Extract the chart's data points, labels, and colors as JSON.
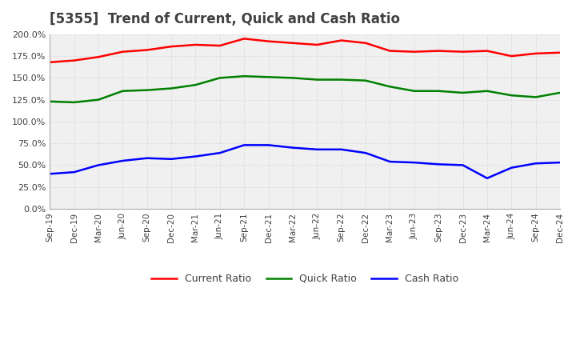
{
  "title": "[5355]  Trend of Current, Quick and Cash Ratio",
  "x_labels": [
    "Sep-19",
    "Dec-19",
    "Mar-20",
    "Jun-20",
    "Sep-20",
    "Dec-20",
    "Mar-21",
    "Jun-21",
    "Sep-21",
    "Dec-21",
    "Mar-22",
    "Jun-22",
    "Sep-22",
    "Dec-22",
    "Mar-23",
    "Jun-23",
    "Sep-23",
    "Dec-23",
    "Mar-24",
    "Jun-24",
    "Sep-24",
    "Dec-24"
  ],
  "current_ratio": [
    168,
    170,
    174,
    180,
    182,
    186,
    188,
    187,
    195,
    192,
    190,
    188,
    193,
    190,
    181,
    180,
    181,
    180,
    181,
    175,
    178,
    179
  ],
  "quick_ratio": [
    123,
    122,
    125,
    135,
    136,
    138,
    142,
    150,
    152,
    151,
    150,
    148,
    148,
    147,
    140,
    135,
    135,
    133,
    135,
    130,
    128,
    133
  ],
  "cash_ratio": [
    40,
    42,
    50,
    55,
    58,
    57,
    60,
    64,
    73,
    73,
    70,
    68,
    68,
    64,
    54,
    53,
    51,
    50,
    35,
    47,
    52,
    53
  ],
  "ylim": [
    0,
    200
  ],
  "yticks": [
    0,
    25,
    50,
    75,
    100,
    125,
    150,
    175,
    200
  ],
  "current_color": "#ff0000",
  "quick_color": "#008000",
  "cash_color": "#0000ff",
  "bg_color": "#ffffff",
  "plot_bg_color": "#f0f0f0",
  "grid_color": "#cccccc",
  "title_color": "#404040",
  "title_fontsize": 12,
  "line_width": 1.8
}
